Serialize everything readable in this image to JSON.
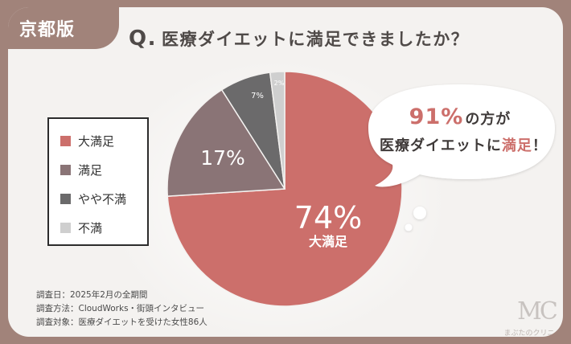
{
  "badge": "京都版",
  "question_prefix": "Q.",
  "question": "医療ダイエットに満足できましたか？",
  "callout": {
    "pct": "91%",
    "line1_rest": "の方が",
    "line2_pre": "医療ダイエットに",
    "line2_hl": "満足",
    "line2_post": "！"
  },
  "notes": [
    "調査日：2025年2月の全期間",
    "調査方法：CloudWorks・街頭インタビュー",
    "調査対象：医療ダイエットを受けた女性86人"
  ],
  "logo": {
    "mark": "MC",
    "name": "まぶたのクリニック"
  },
  "chart_data": {
    "type": "pie",
    "title": "医療ダイエットに満足できましたか？",
    "slices": [
      {
        "label": "大満足",
        "value": 74,
        "display": "74%",
        "color": "#cc6f6b"
      },
      {
        "label": "満足",
        "value": 17,
        "display": "17%",
        "color": "#8a7476"
      },
      {
        "label": "やや不満",
        "value": 7,
        "display": "7%",
        "color": "#6b6a6b"
      },
      {
        "label": "不満",
        "value": 2,
        "display": "2%",
        "color": "#cfcfcf"
      }
    ],
    "legend": [
      "大満足",
      "満足",
      "やや不満",
      "不満"
    ],
    "legend_position": "left",
    "start_angle_deg": 0,
    "direction": "clockwise"
  }
}
